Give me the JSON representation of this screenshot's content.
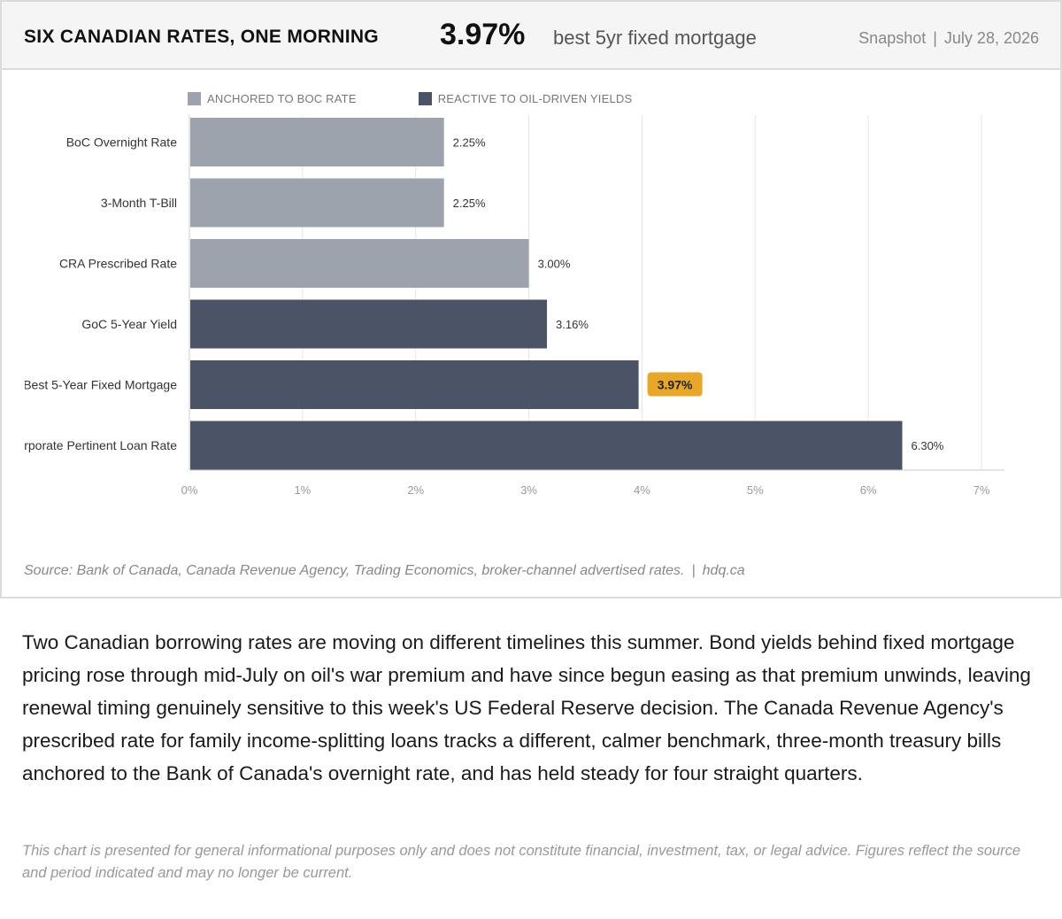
{
  "header": {
    "title": "SIX CANADIAN RATES, ONE MORNING",
    "headline_value": "3.97%",
    "headline_label": "best 5yr fixed mortgage",
    "snapshot_label": "Snapshot",
    "snapshot_date": "July 28, 2026"
  },
  "colors": {
    "anchored": "#9ca3ad",
    "reactive": "#4a5466",
    "highlight": "#e8a726",
    "grid": "#e6e6e6",
    "axis": "#cccccc"
  },
  "legend": [
    {
      "label": "ANCHORED TO BOC RATE",
      "group": "anchored"
    },
    {
      "label": "REACTIVE TO OIL-DRIVEN YIELDS",
      "group": "reactive"
    }
  ],
  "chart_data": {
    "type": "bar",
    "orientation": "horizontal",
    "categories": [
      "BoC Overnight Rate",
      "3-Month T-Bill",
      "CRA Prescribed Rate",
      "GoC 5-Year Yield",
      "Best 5-Year Fixed Mortgage",
      "Corporate Pertinent Loan Rate"
    ],
    "values": [
      2.25,
      2.25,
      3.0,
      3.16,
      3.97,
      6.3
    ],
    "value_labels": [
      "2.25%",
      "2.25%",
      "3.00%",
      "3.16%",
      "3.97%",
      "6.30%"
    ],
    "groups": [
      "anchored",
      "anchored",
      "anchored",
      "reactive",
      "reactive",
      "reactive"
    ],
    "highlight_index": 4,
    "xlim": [
      0,
      7
    ],
    "xticks": [
      0,
      1,
      2,
      3,
      4,
      5,
      6,
      7
    ],
    "xtick_labels": [
      "0%",
      "1%",
      "2%",
      "3%",
      "4%",
      "5%",
      "6%",
      "7%"
    ],
    "grid": true,
    "legend_position": "top-left"
  },
  "source": {
    "text": "Source: Bank of Canada, Canada Revenue Agency, Trading Economics, broker-channel advertised rates.",
    "site": "hdq.ca"
  },
  "body_text": "Two Canadian borrowing rates are moving on different timelines this summer. Bond yields behind fixed mortgage pricing rose through mid-July on oil's war premium and have since begun easing as that premium unwinds, leaving renewal timing genuinely sensitive to this week's US Federal Reserve decision. The Canada Revenue Agency's prescribed rate for family income-splitting loans tracks a different, calmer benchmark, three-month treasury bills anchored to the Bank of Canada's overnight rate, and has held steady for four straight quarters.",
  "disclaimer": "This chart is presented for general informational purposes only and does not constitute financial, investment, tax, or legal advice. Figures reflect the source and period indicated and may no longer be current."
}
